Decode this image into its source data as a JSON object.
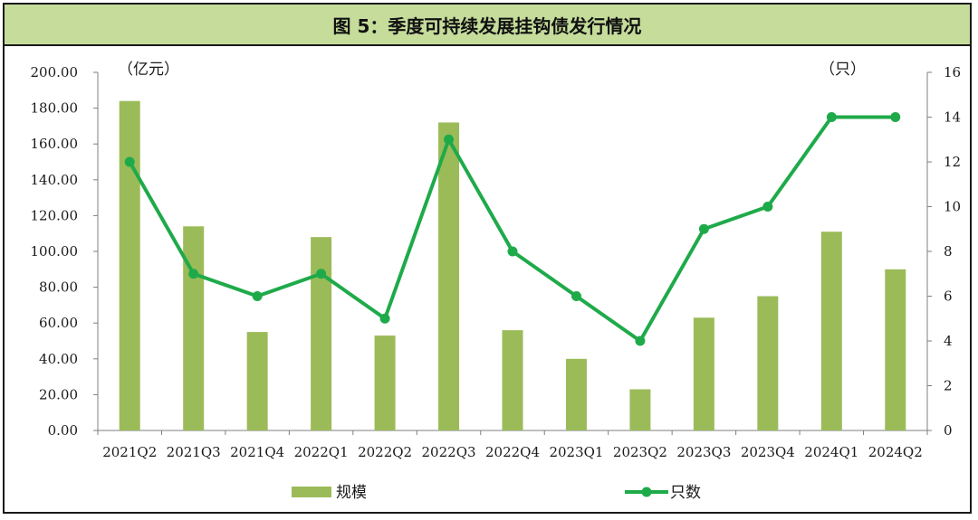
{
  "title": "图 5：季度可持续发展挂钩债发行情况",
  "chart_data": {
    "type": "bar",
    "categories": [
      "2021Q2",
      "2021Q3",
      "2021Q4",
      "2022Q1",
      "2022Q2",
      "2022Q3",
      "2022Q4",
      "2023Q1",
      "2023Q2",
      "2023Q3",
      "2023Q4",
      "2024Q1",
      "2024Q2"
    ],
    "series": [
      {
        "name": "规模",
        "type": "bar",
        "axis": "left",
        "color": "#9bbb59",
        "values": [
          184,
          114,
          55,
          108,
          53,
          172,
          56,
          40,
          23,
          63,
          75,
          111,
          90
        ]
      },
      {
        "name": "只数",
        "type": "line",
        "axis": "right",
        "color": "#1faa4a",
        "values": [
          12,
          7,
          6,
          7,
          5,
          13,
          8,
          6,
          4,
          9,
          10,
          14,
          14
        ]
      }
    ],
    "left_axis": {
      "unit_label": "（亿元）",
      "ylim": [
        0,
        200
      ],
      "ticks": [
        "0.00",
        "20.00",
        "40.00",
        "60.00",
        "80.00",
        "100.00",
        "120.00",
        "140.00",
        "160.00",
        "180.00",
        "200.00"
      ]
    },
    "right_axis": {
      "unit_label": "（只）",
      "ylim": [
        0,
        16
      ],
      "ticks": [
        "0",
        "2",
        "4",
        "6",
        "8",
        "10",
        "12",
        "14",
        "16"
      ]
    },
    "legend_position": "bottom-center",
    "grid": false
  }
}
